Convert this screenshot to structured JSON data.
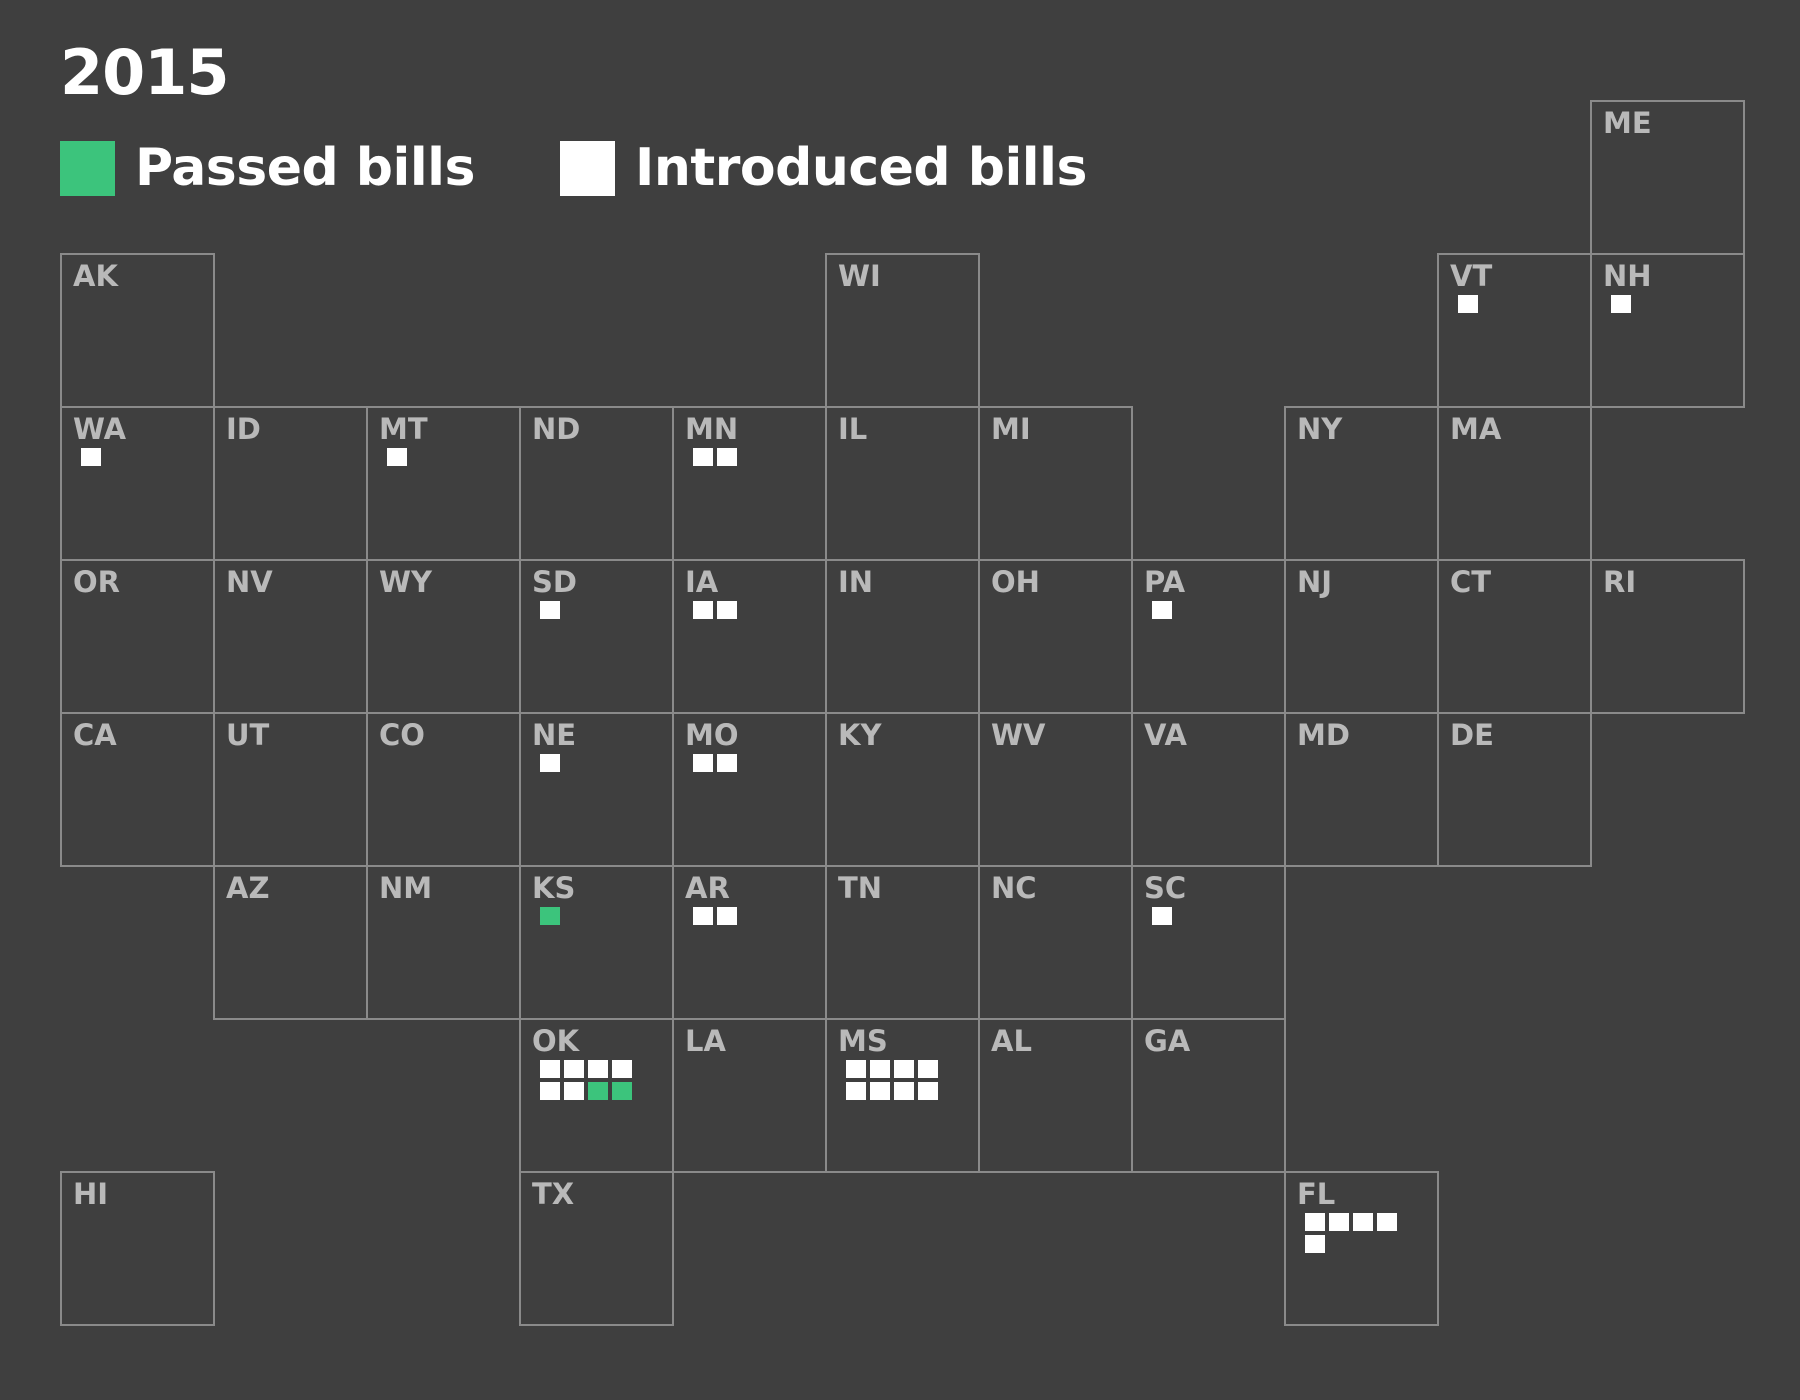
{
  "title": "2015",
  "colors": {
    "background": "#3f3f3f",
    "passed": "#3cc47c",
    "introduced": "#ffffff",
    "tile_border": "#8a8a8a",
    "tile_label": "#b9b9b9"
  },
  "legend": [
    {
      "label": "Passed bills",
      "color": "#3cc47c"
    },
    {
      "label": "Introduced bills",
      "color": "#ffffff"
    }
  ],
  "states": [
    {
      "code": "ME",
      "row": 0,
      "col": 10,
      "bills": []
    },
    {
      "code": "AK",
      "row": 1,
      "col": 0,
      "bills": []
    },
    {
      "code": "WI",
      "row": 1,
      "col": 5,
      "bills": []
    },
    {
      "code": "VT",
      "row": 1,
      "col": 9,
      "bills": [
        "introduced"
      ]
    },
    {
      "code": "NH",
      "row": 1,
      "col": 10,
      "bills": [
        "introduced"
      ]
    },
    {
      "code": "WA",
      "row": 2,
      "col": 0,
      "bills": [
        "introduced"
      ]
    },
    {
      "code": "ID",
      "row": 2,
      "col": 1,
      "bills": []
    },
    {
      "code": "MT",
      "row": 2,
      "col": 2,
      "bills": [
        "introduced"
      ]
    },
    {
      "code": "ND",
      "row": 2,
      "col": 3,
      "bills": []
    },
    {
      "code": "MN",
      "row": 2,
      "col": 4,
      "bills": [
        "introduced",
        "introduced"
      ]
    },
    {
      "code": "IL",
      "row": 2,
      "col": 5,
      "bills": []
    },
    {
      "code": "MI",
      "row": 2,
      "col": 6,
      "bills": []
    },
    {
      "code": "NY",
      "row": 2,
      "col": 8,
      "bills": []
    },
    {
      "code": "MA",
      "row": 2,
      "col": 9,
      "bills": []
    },
    {
      "code": "OR",
      "row": 3,
      "col": 0,
      "bills": []
    },
    {
      "code": "NV",
      "row": 3,
      "col": 1,
      "bills": []
    },
    {
      "code": "WY",
      "row": 3,
      "col": 2,
      "bills": []
    },
    {
      "code": "SD",
      "row": 3,
      "col": 3,
      "bills": [
        "introduced"
      ]
    },
    {
      "code": "IA",
      "row": 3,
      "col": 4,
      "bills": [
        "introduced",
        "introduced"
      ]
    },
    {
      "code": "IN",
      "row": 3,
      "col": 5,
      "bills": []
    },
    {
      "code": "OH",
      "row": 3,
      "col": 6,
      "bills": []
    },
    {
      "code": "PA",
      "row": 3,
      "col": 7,
      "bills": [
        "introduced"
      ]
    },
    {
      "code": "NJ",
      "row": 3,
      "col": 8,
      "bills": []
    },
    {
      "code": "CT",
      "row": 3,
      "col": 9,
      "bills": []
    },
    {
      "code": "RI",
      "row": 3,
      "col": 10,
      "bills": []
    },
    {
      "code": "CA",
      "row": 4,
      "col": 0,
      "bills": []
    },
    {
      "code": "UT",
      "row": 4,
      "col": 1,
      "bills": []
    },
    {
      "code": "CO",
      "row": 4,
      "col": 2,
      "bills": []
    },
    {
      "code": "NE",
      "row": 4,
      "col": 3,
      "bills": [
        "introduced"
      ]
    },
    {
      "code": "MO",
      "row": 4,
      "col": 4,
      "bills": [
        "introduced",
        "introduced"
      ]
    },
    {
      "code": "KY",
      "row": 4,
      "col": 5,
      "bills": []
    },
    {
      "code": "WV",
      "row": 4,
      "col": 6,
      "bills": []
    },
    {
      "code": "VA",
      "row": 4,
      "col": 7,
      "bills": []
    },
    {
      "code": "MD",
      "row": 4,
      "col": 8,
      "bills": []
    },
    {
      "code": "DE",
      "row": 4,
      "col": 9,
      "bills": []
    },
    {
      "code": "AZ",
      "row": 5,
      "col": 1,
      "bills": []
    },
    {
      "code": "NM",
      "row": 5,
      "col": 2,
      "bills": []
    },
    {
      "code": "KS",
      "row": 5,
      "col": 3,
      "bills": [
        "passed"
      ]
    },
    {
      "code": "AR",
      "row": 5,
      "col": 4,
      "bills": [
        "introduced",
        "introduced"
      ]
    },
    {
      "code": "TN",
      "row": 5,
      "col": 5,
      "bills": []
    },
    {
      "code": "NC",
      "row": 5,
      "col": 6,
      "bills": []
    },
    {
      "code": "SC",
      "row": 5,
      "col": 7,
      "bills": [
        "introduced"
      ]
    },
    {
      "code": "OK",
      "row": 6,
      "col": 3,
      "bills": [
        "introduced",
        "introduced",
        "introduced",
        "introduced",
        "introduced",
        "introduced",
        "passed",
        "passed"
      ]
    },
    {
      "code": "LA",
      "row": 6,
      "col": 4,
      "bills": []
    },
    {
      "code": "MS",
      "row": 6,
      "col": 5,
      "bills": [
        "introduced",
        "introduced",
        "introduced",
        "introduced",
        "introduced",
        "introduced",
        "introduced",
        "introduced"
      ]
    },
    {
      "code": "AL",
      "row": 6,
      "col": 6,
      "bills": []
    },
    {
      "code": "GA",
      "row": 6,
      "col": 7,
      "bills": []
    },
    {
      "code": "HI",
      "row": 7,
      "col": 0,
      "bills": []
    },
    {
      "code": "TX",
      "row": 7,
      "col": 3,
      "bills": []
    },
    {
      "code": "FL",
      "row": 7,
      "col": 8,
      "bills": [
        "introduced",
        "introduced",
        "introduced",
        "introduced",
        "introduced"
      ]
    }
  ]
}
